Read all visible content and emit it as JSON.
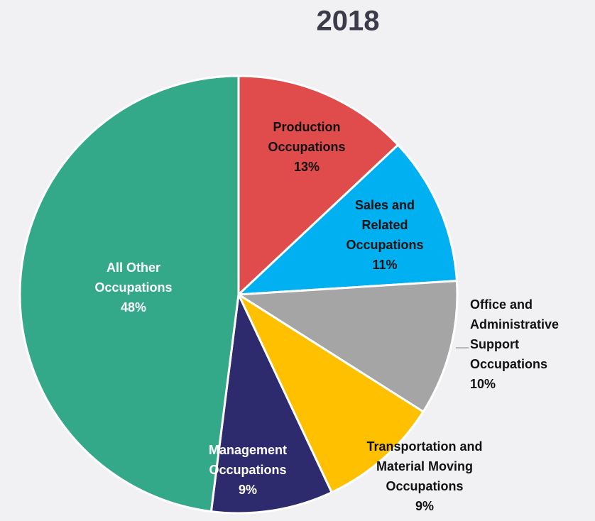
{
  "chart_data": {
    "type": "pie",
    "title": "2018",
    "categories": [
      "Production Occupations",
      "Sales and Related Occupations",
      "Office and Administrative Support Occupations",
      "Transportation and Material Moving Occupations",
      "Management Occupations",
      "All Other Occupations"
    ],
    "values": [
      13,
      11,
      10,
      9,
      9,
      48
    ],
    "value_labels": [
      "13%",
      "11%",
      "10%",
      "9%",
      "9%",
      "48%"
    ],
    "colors": [
      "#e04b4b",
      "#00b0f0",
      "#a5a5a5",
      "#ffc000",
      "#2e2a6e",
      "#33a98a"
    ]
  }
}
